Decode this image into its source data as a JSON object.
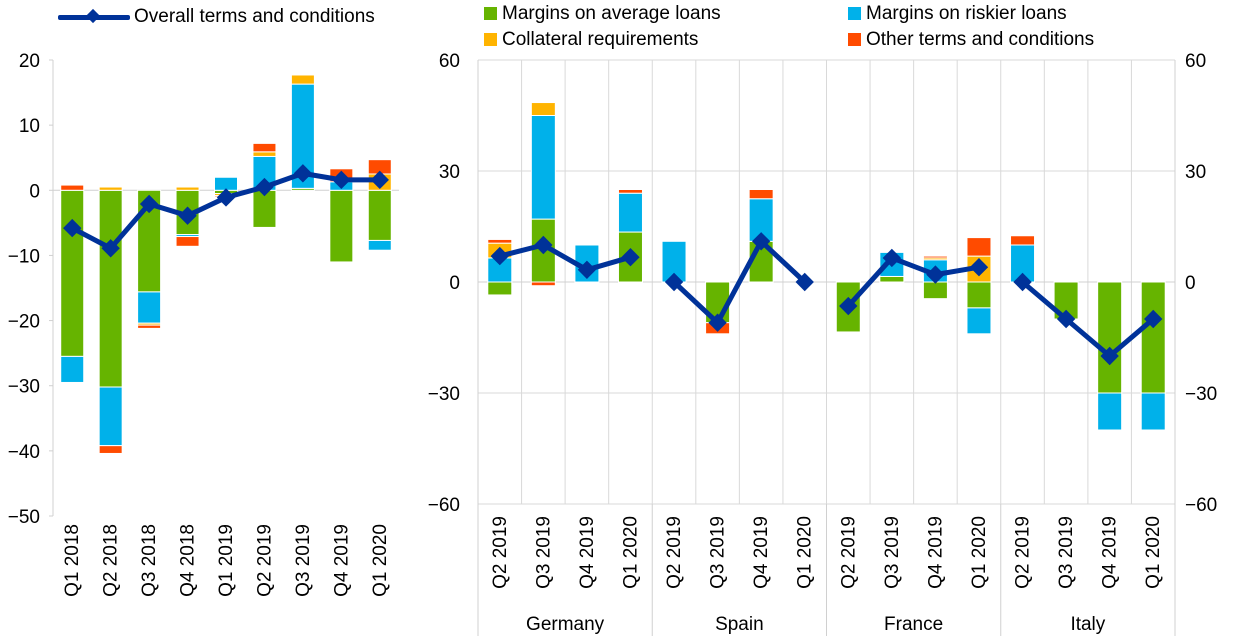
{
  "legend": {
    "overall": "Overall terms and conditions",
    "margins_avg": "Margins on average loans",
    "margins_risk": "Margins on riskier loans",
    "collateral": "Collateral requirements",
    "other": "Other terms and conditions"
  },
  "colors": {
    "margins_avg": "#66b400",
    "margins_risk": "#00b1ea",
    "collateral": "#ffb400",
    "other": "#ff4b00",
    "overall": "#003299",
    "grid": "#d9d9d9",
    "axis": "#d0d0d0"
  },
  "chart_data": [
    {
      "type": "bar",
      "subtype": "stacked bar with line",
      "ylim": [
        -50,
        20
      ],
      "yticks": [
        20,
        10,
        0,
        -10,
        -20,
        -30,
        -40,
        -50
      ],
      "grid": false,
      "categories": [
        "Q1 2018",
        "Q2 2018",
        "Q3 2018",
        "Q4 2018",
        "Q1 2019",
        "Q2 2019",
        "Q3 2019",
        "Q4 2019",
        "Q1 2020"
      ],
      "series": [
        {
          "key": "margins_avg",
          "name": "Margins on average loans",
          "values": [
            -25.5,
            -30.2,
            -15.6,
            -6.8,
            -0.5,
            -5.7,
            0.3,
            -11.0,
            -7.7
          ]
        },
        {
          "key": "margins_risk",
          "name": "Margins on riskier loans",
          "values": [
            -4.0,
            -9.0,
            -4.8,
            -0.3,
            2.0,
            5.2,
            16.0,
            1.3,
            -1.5
          ]
        },
        {
          "key": "collateral",
          "name": "Collateral requirements",
          "values": [
            0.0,
            0.5,
            -0.3,
            0.5,
            -0.3,
            0.7,
            1.4,
            0.0,
            2.5
          ]
        },
        {
          "key": "other",
          "name": "Other terms and conditions",
          "values": [
            0.8,
            -1.2,
            -0.5,
            -1.5,
            -0.2,
            1.3,
            0.0,
            2.0,
            2.2
          ]
        }
      ],
      "line": {
        "key": "overall",
        "name": "Overall terms and conditions",
        "values": [
          -5.8,
          -8.9,
          -2.1,
          -3.9,
          -1.1,
          0.5,
          2.6,
          1.6,
          1.6
        ]
      }
    },
    {
      "type": "bar",
      "subtype": "stacked bar with line, grouped by country",
      "ylim": [
        -60,
        60
      ],
      "yticks": [
        60,
        30,
        0,
        -30,
        -60
      ],
      "grid": true,
      "groups": [
        {
          "name": "Germany",
          "categories": [
            "Q2 2019",
            "Q3 2019",
            "Q4 2019",
            "Q1 2020"
          ],
          "margins_avg": [
            -3.5,
            17.0,
            0.0,
            13.5
          ],
          "margins_risk": [
            6.5,
            28.0,
            10.0,
            10.5
          ],
          "collateral": [
            4.0,
            3.5,
            0.0,
            0.0
          ],
          "other": [
            1.0,
            -1.0,
            0.0,
            1.0
          ],
          "overall": [
            7.0,
            10.0,
            3.3,
            6.7
          ]
        },
        {
          "name": "Spain",
          "categories": [
            "Q2 2019",
            "Q3 2019",
            "Q4 2019",
            "Q1 2020"
          ],
          "margins_avg": [
            0.0,
            -11.0,
            11.0,
            0.0
          ],
          "margins_risk": [
            11.0,
            0.0,
            11.5,
            0.0
          ],
          "collateral": [
            0.0,
            0.0,
            0.0,
            0.0
          ],
          "other": [
            0.0,
            -3.0,
            2.5,
            0.0
          ],
          "overall": [
            0.0,
            -11.0,
            11.0,
            0.0
          ]
        },
        {
          "name": "France",
          "categories": [
            "Q2 2019",
            "Q3 2019",
            "Q4 2019",
            "Q1 2020"
          ],
          "margins_avg": [
            -13.5,
            1.5,
            -4.5,
            -7.0
          ],
          "margins_risk": [
            0.0,
            6.5,
            6.0,
            -7.0
          ],
          "collateral": [
            0.0,
            0.0,
            0.5,
            7.0
          ],
          "other": [
            0.0,
            0.0,
            0.5,
            5.0
          ],
          "overall": [
            -6.5,
            6.5,
            2.0,
            4.0
          ]
        },
        {
          "name": "Italy",
          "categories": [
            "Q2 2019",
            "Q3 2019",
            "Q4 2019",
            "Q1 2020"
          ],
          "margins_avg": [
            0.0,
            -10.0,
            -30.0,
            -30.0
          ],
          "margins_risk": [
            10.0,
            0.0,
            -10.0,
            -10.0
          ],
          "collateral": [
            0.0,
            0.0,
            0.0,
            0.0
          ],
          "other": [
            2.5,
            0.0,
            0.0,
            0.0
          ],
          "overall": [
            0.0,
            -10.0,
            -20.0,
            -10.0
          ]
        }
      ]
    }
  ]
}
